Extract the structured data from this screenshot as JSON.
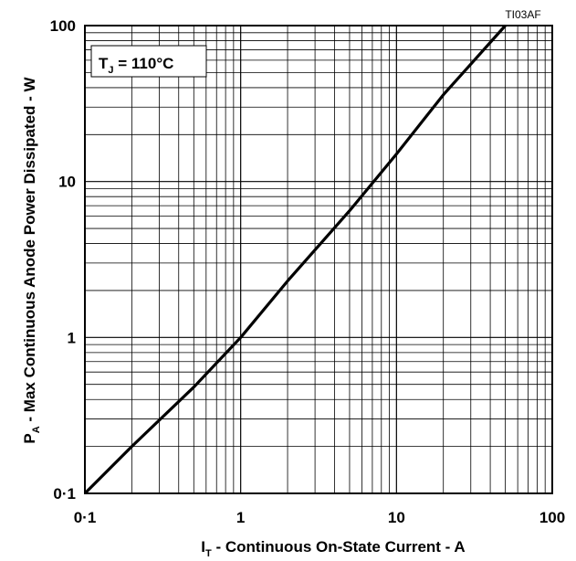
{
  "chart_data": {
    "type": "line",
    "figure_id": "TI03AF",
    "annotation": {
      "main": "T",
      "sub": "J",
      "rest": " = 110°C"
    },
    "xlabel": {
      "main": "I",
      "sub": "T",
      "rest": " - Continuous On-State Current - A"
    },
    "ylabel": {
      "main": "P",
      "sub": "A",
      "rest": " - Max Continuous Anode Power Dissipated - W"
    },
    "xscale": "log",
    "yscale": "log",
    "xlim": [
      0.1,
      100
    ],
    "ylim": [
      0.1,
      100
    ],
    "grid": true,
    "xticks": [
      {
        "value": 0.1,
        "label": "0·1"
      },
      {
        "value": 1,
        "label": "1"
      },
      {
        "value": 10,
        "label": "10"
      },
      {
        "value": 100,
        "label": "100"
      }
    ],
    "yticks": [
      {
        "value": 0.1,
        "label": "0·1"
      },
      {
        "value": 1,
        "label": "1"
      },
      {
        "value": 10,
        "label": "10"
      },
      {
        "value": 100,
        "label": "100"
      }
    ],
    "series": [
      {
        "x": [
          0.1,
          0.2,
          0.5,
          1,
          2,
          5,
          10,
          20,
          50
        ],
        "y": [
          0.1,
          0.2,
          0.48,
          1.0,
          2.3,
          6.5,
          15,
          36,
          100
        ]
      }
    ]
  }
}
